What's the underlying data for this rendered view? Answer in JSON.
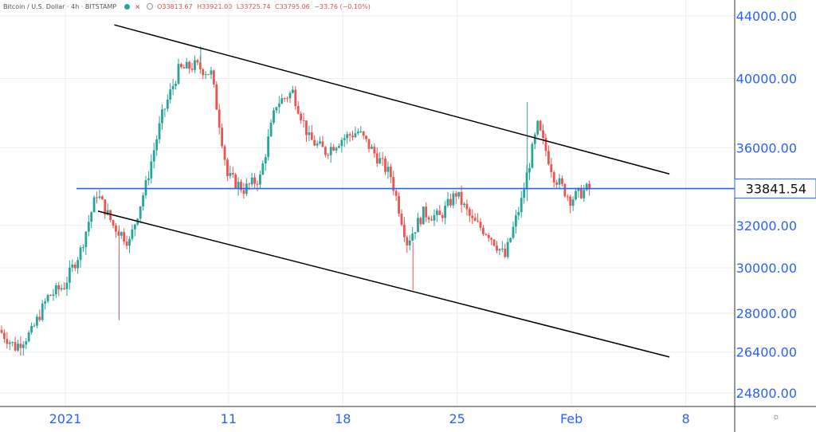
{
  "legend": {
    "symbol": "Bitcoin / U.S. Dollar · 4h · BITSTAMP",
    "open": "O33813.67",
    "high": "H33921.00",
    "low": "L33725.74",
    "close": "C33795.06",
    "change": "−33.76 (−0.10%)"
  },
  "colors": {
    "up": "#26a69a",
    "down": "#ef5350",
    "axis_text": "#2962ff",
    "price_line": "#2962ff",
    "trendline": "#000000",
    "grid": "#eeeeee"
  },
  "icons": {
    "settings": "gear-icon"
  },
  "chart_data": {
    "type": "candlestick",
    "title": "",
    "subtitle": "Bitcoin / U.S. Dollar · 4h · BITSTAMP",
    "xlabel": "",
    "ylabel": "",
    "y_scale": "log",
    "ylim": [
      24300,
      44800
    ],
    "x_range": [
      "2020-12-28",
      "2021-02-11"
    ],
    "x_ticks": [
      {
        "label": "2021",
        "date": "2021-01-01"
      },
      {
        "label": "11",
        "date": "2021-01-11"
      },
      {
        "label": "18",
        "date": "2021-01-18"
      },
      {
        "label": "25",
        "date": "2021-01-25"
      },
      {
        "label": "Feb",
        "date": "2021-02-01"
      },
      {
        "label": "8",
        "date": "2021-02-08"
      }
    ],
    "y_ticks": [
      24800,
      26400,
      28000,
      30000,
      32000,
      36000,
      40000,
      44000
    ],
    "y_tick_labels": [
      "24800.00",
      "26400.00",
      "28000.00",
      "30000.00",
      "32000.00",
      "36000.00",
      "40000.00",
      "44000.00"
    ],
    "current_price": 33841.54,
    "current_price_label": "33841.54",
    "horizontal_line": 33841.54,
    "grid": true,
    "trendlines": [
      {
        "from": {
          "date": "2021-01-04",
          "price": 43400
        },
        "to": {
          "date": "2021-02-07",
          "price": 34600
        }
      },
      {
        "from": {
          "date": "2021-01-03",
          "price": 32700
        },
        "to": {
          "date": "2021-02-07",
          "price": 26200
        }
      }
    ],
    "anchors": [
      {
        "date": "2020-12-28",
        "price": 27300
      },
      {
        "date": "2020-12-29",
        "price": 26600
      },
      {
        "date": "2020-12-30",
        "price": 27200
      },
      {
        "date": "2020-12-31",
        "price": 28700
      },
      {
        "date": "2021-01-01",
        "price": 29200
      },
      {
        "date": "2021-01-02",
        "price": 30800
      },
      {
        "date": "2021-01-03",
        "price": 33600
      },
      {
        "date": "2021-01-04",
        "price": 32000
      },
      {
        "date": "2021-01-05",
        "price": 31200
      },
      {
        "date": "2021-01-06",
        "price": 34000
      },
      {
        "date": "2021-01-07",
        "price": 37800
      },
      {
        "date": "2021-01-08",
        "price": 40500
      },
      {
        "date": "2021-01-09",
        "price": 40800
      },
      {
        "date": "2021-01-10",
        "price": 40300
      },
      {
        "date": "2021-01-11",
        "price": 34500
      },
      {
        "date": "2021-01-12",
        "price": 33800
      },
      {
        "date": "2021-01-13",
        "price": 34400
      },
      {
        "date": "2021-01-14",
        "price": 38500
      },
      {
        "date": "2021-01-15",
        "price": 39200
      },
      {
        "date": "2021-01-16",
        "price": 36500
      },
      {
        "date": "2021-01-17",
        "price": 35800
      },
      {
        "date": "2021-01-18",
        "price": 36500
      },
      {
        "date": "2021-01-19",
        "price": 36900
      },
      {
        "date": "2021-01-20",
        "price": 35700
      },
      {
        "date": "2021-01-21",
        "price": 34500
      },
      {
        "date": "2021-01-22",
        "price": 31200
      },
      {
        "date": "2021-01-23",
        "price": 32600
      },
      {
        "date": "2021-01-24",
        "price": 32400
      },
      {
        "date": "2021-01-25",
        "price": 33600
      },
      {
        "date": "2021-01-26",
        "price": 32200
      },
      {
        "date": "2021-01-27",
        "price": 31600
      },
      {
        "date": "2021-01-28",
        "price": 30500
      },
      {
        "date": "2021-01-29",
        "price": 33200
      },
      {
        "date": "2021-01-30",
        "price": 37200
      },
      {
        "date": "2021-01-31",
        "price": 34500
      },
      {
        "date": "2021-02-01",
        "price": 33300
      },
      {
        "date": "2021-02-02",
        "price": 33800
      }
    ],
    "extremes": [
      {
        "date": "2021-01-09",
        "price": 42000,
        "kind": "high"
      },
      {
        "date": "2021-01-04",
        "price": 27700,
        "kind": "low"
      },
      {
        "date": "2021-01-22",
        "price": 29000,
        "kind": "low"
      },
      {
        "date": "2021-01-29",
        "price": 38600,
        "kind": "high"
      }
    ]
  }
}
